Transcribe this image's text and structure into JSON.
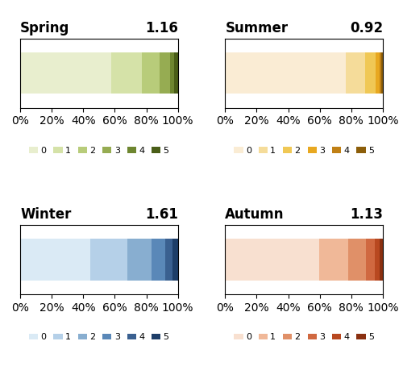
{
  "chart_data": [
    {
      "type": "bar",
      "orientation": "horizontal",
      "stacked": true,
      "title": "Spring",
      "annotations": [
        "1.16"
      ],
      "categories": [
        null
      ],
      "series": [
        {
          "name": "0",
          "color": "#e8eece",
          "values": [
            0.575
          ]
        },
        {
          "name": "1",
          "color": "#d5e2a8",
          "values": [
            0.195
          ]
        },
        {
          "name": "2",
          "color": "#b8cc7a",
          "values": [
            0.115
          ]
        },
        {
          "name": "3",
          "color": "#96ac52",
          "values": [
            0.065
          ]
        },
        {
          "name": "4",
          "color": "#6e8630",
          "values": [
            0.025
          ]
        },
        {
          "name": "5",
          "color": "#4a5e18",
          "values": [
            0.025
          ]
        }
      ],
      "xlim": [
        0,
        1
      ],
      "xticks": [
        {
          "value": 0,
          "label": "0%"
        },
        {
          "value": 0.2,
          "label": "20%"
        },
        {
          "value": 0.4,
          "label": "40%"
        },
        {
          "value": 0.6,
          "label": "60%"
        },
        {
          "value": 0.8,
          "label": "80%"
        },
        {
          "value": 1,
          "label": "100%"
        }
      ],
      "tick_labels": "x",
      "legend": "upper center"
    },
    {
      "type": "bar",
      "orientation": "horizontal",
      "stacked": true,
      "title": "Summer",
      "annotations": [
        "0.92"
      ],
      "categories": [
        null
      ],
      "series": [
        {
          "name": "0",
          "color": "#faecd4",
          "values": [
            0.765
          ]
        },
        {
          "name": "1",
          "color": "#f5dc9a",
          "values": [
            0.125
          ]
        },
        {
          "name": "2",
          "color": "#f0c855",
          "values": [
            0.065
          ]
        },
        {
          "name": "3",
          "color": "#e8a820",
          "values": [
            0.025
          ]
        },
        {
          "name": "4",
          "color": "#c08015",
          "values": [
            0.01
          ]
        },
        {
          "name": "5",
          "color": "#8c5e0a",
          "values": [
            0.01
          ]
        }
      ],
      "xlim": [
        0,
        1
      ],
      "xticks": [
        {
          "value": 0,
          "label": "0%"
        },
        {
          "value": 0.2,
          "label": "20%"
        },
        {
          "value": 0.4,
          "label": "40%"
        },
        {
          "value": 0.6,
          "label": "60%"
        },
        {
          "value": 0.8,
          "label": "80%"
        },
        {
          "value": 1,
          "label": "100%"
        }
      ],
      "tick_labels": "x",
      "legend": "upper center"
    },
    {
      "type": "bar",
      "orientation": "horizontal",
      "stacked": true,
      "title": "Winter",
      "annotations": [
        "1.61"
      ],
      "categories": [
        null
      ],
      "series": [
        {
          "name": "0",
          "color": "#daeaf5",
          "values": [
            0.445
          ]
        },
        {
          "name": "1",
          "color": "#b5d0e8",
          "values": [
            0.235
          ]
        },
        {
          "name": "2",
          "color": "#88aed0",
          "values": [
            0.155
          ]
        },
        {
          "name": "3",
          "color": "#5a88b8",
          "values": [
            0.085
          ]
        },
        {
          "name": "4",
          "color": "#3a6090",
          "values": [
            0.045
          ]
        },
        {
          "name": "5",
          "color": "#1e3e68",
          "values": [
            0.035
          ]
        }
      ],
      "xlim": [
        0,
        1
      ],
      "xticks": [
        {
          "value": 0,
          "label": "0%"
        },
        {
          "value": 0.2,
          "label": "20%"
        },
        {
          "value": 0.4,
          "label": "40%"
        },
        {
          "value": 0.6,
          "label": "60%"
        },
        {
          "value": 0.8,
          "label": "80%"
        },
        {
          "value": 1,
          "label": "100%"
        }
      ],
      "tick_labels": "x",
      "legend": "upper center"
    },
    {
      "type": "bar",
      "orientation": "horizontal",
      "stacked": true,
      "title": "Autumn",
      "annotations": [
        "1.13"
      ],
      "categories": [
        null
      ],
      "series": [
        {
          "name": "0",
          "color": "#f8e0d0",
          "values": [
            0.595
          ]
        },
        {
          "name": "1",
          "color": "#f0b898",
          "values": [
            0.185
          ]
        },
        {
          "name": "2",
          "color": "#e09068",
          "values": [
            0.115
          ]
        },
        {
          "name": "3",
          "color": "#d06840",
          "values": [
            0.055
          ]
        },
        {
          "name": "4",
          "color": "#b84820",
          "values": [
            0.03
          ]
        },
        {
          "name": "5",
          "color": "#8a3010",
          "values": [
            0.02
          ]
        }
      ],
      "xlim": [
        0,
        1
      ],
      "xticks": [
        {
          "value": 0,
          "label": "0%"
        },
        {
          "value": 0.2,
          "label": "20%"
        },
        {
          "value": 0.4,
          "label": "40%"
        },
        {
          "value": 0.6,
          "label": "60%"
        },
        {
          "value": 0.8,
          "label": "80%"
        },
        {
          "value": 1,
          "label": "100%"
        }
      ],
      "tick_labels": "x",
      "legend": "upper center"
    }
  ]
}
